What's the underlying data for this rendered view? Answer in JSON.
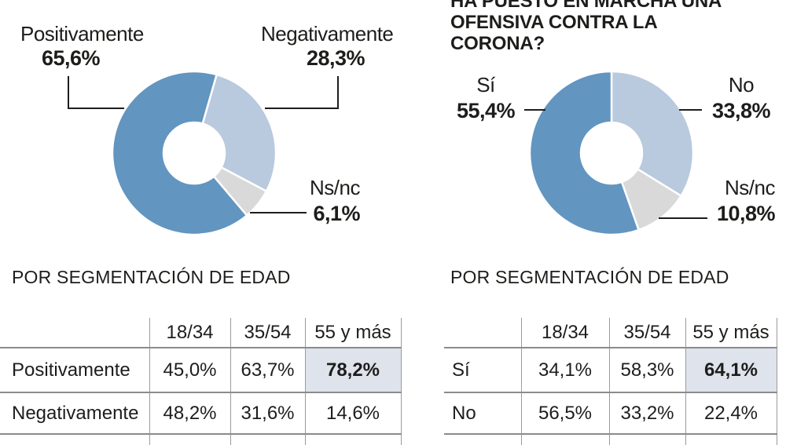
{
  "right_panel": {
    "title_line1": "HA PUESTO EN MARCHA UNA",
    "title_line2": "OFENSIVA CONTRA LA CORONA?"
  },
  "chart_data": [
    {
      "type": "pie",
      "subtype": "donut",
      "title": "",
      "legend_position": "callouts",
      "rotation_deg": 16,
      "slices": [
        {
          "label": "Negativamente",
          "value": 28.3,
          "value_label": "28,3%",
          "color": "#b9c9de"
        },
        {
          "label": "Ns/nc",
          "value": 6.1,
          "value_label": "6,1%",
          "color": "#d9d9d9"
        },
        {
          "label": "Positivamente",
          "value": 65.6,
          "value_label": "65,6%",
          "color": "#6295c0"
        }
      ]
    },
    {
      "type": "pie",
      "subtype": "donut",
      "title": "HA PUESTO EN MARCHA UNA OFENSIVA CONTRA LA CORONA?",
      "legend_position": "callouts",
      "rotation_deg": 0,
      "slices": [
        {
          "label": "No",
          "value": 33.8,
          "value_label": "33,8%",
          "color": "#b9c9de"
        },
        {
          "label": "Ns/nc",
          "value": 10.8,
          "value_label": "10,8%",
          "color": "#d9d9d9"
        },
        {
          "label": "Sí",
          "value": 55.4,
          "value_label": "55,4%",
          "color": "#6295c0"
        }
      ]
    }
  ],
  "tables": [
    {
      "heading": "POR SEGMENTACIÓN DE EDAD",
      "columns": [
        "18/34",
        "35/54",
        "55 y más"
      ],
      "rows": [
        {
          "label": "Positivamente",
          "values": [
            "45,0%",
            "63,7%",
            "78,2%"
          ],
          "highlight_column": "55 y más"
        },
        {
          "label": "Negativamente",
          "values": [
            "48,2%",
            "31,6%",
            "14,6%"
          ]
        }
      ]
    },
    {
      "heading": "POR SEGMENTACIÓN DE EDAD",
      "columns": [
        "18/34",
        "35/54",
        "55 y más"
      ],
      "rows": [
        {
          "label": "Sí",
          "values": [
            "34,1%",
            "58,3%",
            "64,1%"
          ],
          "highlight_column": "55 y más"
        },
        {
          "label": "No",
          "values": [
            "56,5%",
            "33,2%",
            "22,4%"
          ]
        }
      ]
    }
  ],
  "colors": {
    "primary_blue": "#6295c0",
    "light_blue": "#b9c9de",
    "gray": "#d9d9d9",
    "highlight_cell_bg": "#dee3ec",
    "text": "#1d1d1b",
    "grid_line": "#8b8b8b"
  }
}
